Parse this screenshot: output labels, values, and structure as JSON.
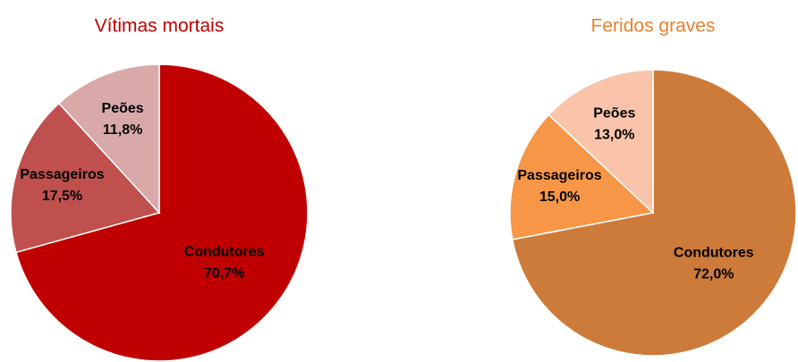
{
  "chart_data": [
    {
      "type": "pie",
      "title": "Vítimas mortais",
      "categories": [
        "Condutores",
        "Passageiros",
        "Peões"
      ],
      "values": [
        70.7,
        17.5,
        11.8
      ],
      "value_labels": [
        "70,7%",
        "17,5%",
        "11,8%"
      ],
      "colors": [
        "#c00000",
        "#c0504d",
        "#d9a9a9"
      ],
      "title_color": "#c00000"
    },
    {
      "type": "pie",
      "title": "Feridos graves",
      "categories": [
        "Condutores",
        "Passageiros",
        "Peões"
      ],
      "values": [
        72.0,
        15.0,
        13.0
      ],
      "value_labels": [
        "72,0%",
        "15,0%",
        "13,0%"
      ],
      "colors": [
        "#cd7b3a",
        "#f79646",
        "#f9c4a9"
      ],
      "title_color": "#e8812e"
    }
  ]
}
